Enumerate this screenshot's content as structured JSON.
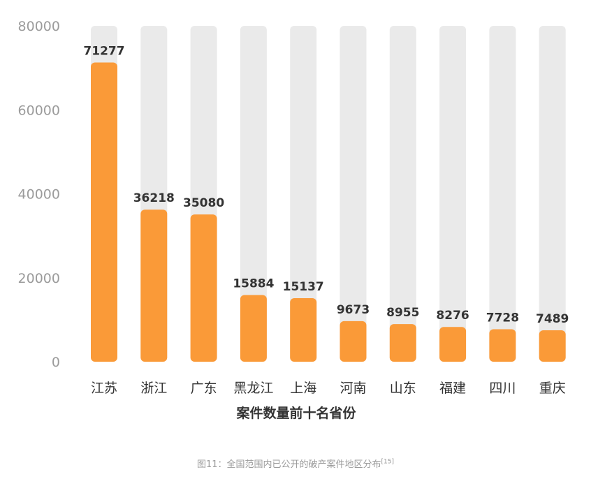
{
  "chart_data": {
    "type": "bar",
    "categories": [
      "江苏",
      "浙江",
      "广东",
      "黑龙江",
      "上海",
      "河南",
      "山东",
      "福建",
      "四川",
      "重庆"
    ],
    "values": [
      71277,
      36218,
      35080,
      15884,
      15137,
      9673,
      8955,
      8276,
      7728,
      7489
    ],
    "data_labels": [
      "71277",
      "36218",
      "35080",
      "15884",
      "15137",
      "9673",
      "8955",
      "8276",
      "7728",
      "7489"
    ],
    "xlabel": "案件数量前十名省份",
    "ylabel": "",
    "ylim": [
      0,
      80000
    ],
    "yticks": [
      "0",
      "20000",
      "40000",
      "60000",
      "80000"
    ],
    "grid": false,
    "legend": "none",
    "colors": {
      "bar": "#FA9A38",
      "track": "#EAEAEA",
      "tick_label": "#9B9B9B",
      "category_label": "#333333",
      "value_label": "#333333"
    }
  },
  "caption": {
    "text": "图11：全国范围内已公开的破产案件地区分布",
    "ref": "[15]"
  }
}
